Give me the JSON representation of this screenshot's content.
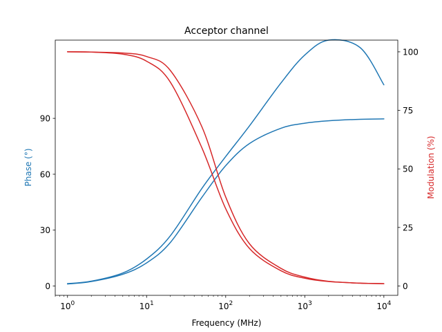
{
  "chart_data": {
    "type": "line",
    "title": "Acceptor channel",
    "xlabel": "Frequency (MHz)",
    "ylabel_left": "Phase (°)",
    "ylabel_right": "Modulation (%)",
    "x_scale": "log",
    "xlim": [
      0.7,
      15000
    ],
    "ylim_left": [
      -5,
      132
    ],
    "ylim_right": [
      -4,
      105
    ],
    "x_ticks": [
      1,
      10,
      100,
      1000,
      10000
    ],
    "x_tick_labels": [
      {
        "base": "10",
        "exp": "0"
      },
      {
        "base": "10",
        "exp": "1"
      },
      {
        "base": "10",
        "exp": "2"
      },
      {
        "base": "10",
        "exp": "3"
      },
      {
        "base": "10",
        "exp": "4"
      }
    ],
    "y_ticks_left": [
      0,
      30,
      60,
      90
    ],
    "y_ticks_right": [
      0,
      25,
      50,
      75,
      100
    ],
    "grid": false,
    "colors": {
      "phase": "#1f77b4",
      "modulation": "#d62728",
      "left_label": "#1f77b4",
      "right_label": "#d62728"
    },
    "series": [
      {
        "axis": "left",
        "color": "#1f77b4",
        "x": [
          1,
          2,
          5,
          10,
          20,
          50,
          100,
          200,
          500,
          1000,
          2000,
          5000,
          10000
        ],
        "y": [
          1.1,
          2.4,
          6.3,
          12.4,
          23.4,
          47.6,
          64.6,
          76.5,
          84.7,
          87.4,
          88.7,
          89.5,
          89.7
        ]
      },
      {
        "axis": "left",
        "color": "#1f77b4",
        "x": [
          1,
          2,
          5,
          10,
          20,
          50,
          100,
          200,
          500,
          1000,
          2000,
          5000,
          10000
        ],
        "y": [
          1.3,
          2.6,
          7.0,
          14.5,
          27.0,
          52.4,
          69.5,
          86.0,
          109.0,
          124.0,
          132.0,
          128.0,
          108.0
        ]
      },
      {
        "axis": "right",
        "color": "#d62728",
        "x": [
          1,
          2,
          5,
          10,
          20,
          50,
          100,
          200,
          500,
          1000,
          2000,
          5000,
          10000
        ],
        "y": [
          100,
          99.9,
          99.0,
          96.0,
          87.0,
          59.0,
          33.0,
          16.0,
          6.5,
          3.3,
          1.9,
          1.2,
          1.0
        ]
      },
      {
        "axis": "right",
        "color": "#d62728",
        "x": [
          1,
          2,
          5,
          10,
          20,
          50,
          100,
          200,
          500,
          1000,
          2000,
          5000,
          10000
        ],
        "y": [
          100,
          99.9,
          99.5,
          98.0,
          92.0,
          68.0,
          38.0,
          18.0,
          7.5,
          3.8,
          2.0,
          1.2,
          1.0
        ]
      }
    ]
  }
}
